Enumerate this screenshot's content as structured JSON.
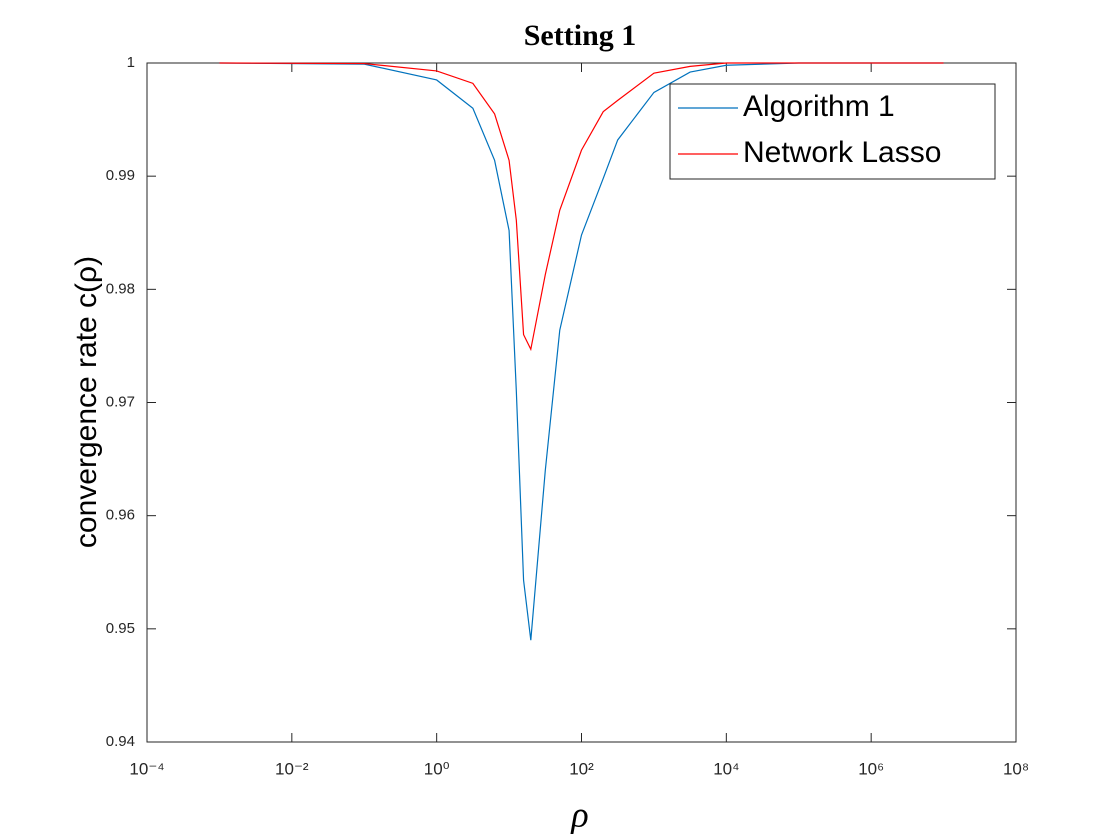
{
  "chart_data": {
    "type": "line",
    "title": "Setting 1",
    "x_label": "ρ",
    "y_label": "convergence rate c(ρ)",
    "x": [
      0.001,
      0.1,
      1,
      3.162,
      6.31,
      10,
      12.59,
      15.85,
      19.95,
      31.62,
      50.12,
      100,
      199.5,
      316.2,
      1000,
      3162,
      10000,
      100000,
      1000000,
      10000000
    ],
    "series": [
      {
        "name": "Algorithm 1",
        "color": "#0072bd",
        "values": [
          1,
          0.9999,
          0.9985,
          0.996,
          0.9914,
          0.9852,
          0.971,
          0.9543,
          0.949,
          0.964,
          0.9764,
          0.9848,
          0.9898,
          0.9932,
          0.9974,
          0.9992,
          0.9998,
          1,
          1,
          1
        ]
      },
      {
        "name": "Network Lasso",
        "color": "#ff0000",
        "values": [
          1,
          0.99995,
          0.9993,
          0.9982,
          0.9955,
          0.9914,
          0.9861,
          0.976,
          0.9747,
          0.9813,
          0.987,
          0.9923,
          0.9957,
          0.9967,
          0.9991,
          0.9997,
          1,
          1,
          1,
          1
        ]
      }
    ],
    "xscale": "log",
    "xlim": [
      0.0001,
      100000000
    ],
    "xticks": [
      {
        "value": 0.0001,
        "label": "10⁻⁴"
      },
      {
        "value": 0.01,
        "label": "10⁻²"
      },
      {
        "value": 1,
        "label": "10⁰"
      },
      {
        "value": 100,
        "label": "10²"
      },
      {
        "value": 10000,
        "label": "10⁴"
      },
      {
        "value": 1000000,
        "label": "10⁶"
      },
      {
        "value": 100000000,
        "label": "10⁸"
      }
    ],
    "ylim": [
      0.94,
      1
    ],
    "yticks": [
      0.94,
      0.95,
      0.96,
      0.97,
      0.98,
      0.99,
      1
    ],
    "grid": false,
    "legend": "upper right"
  }
}
